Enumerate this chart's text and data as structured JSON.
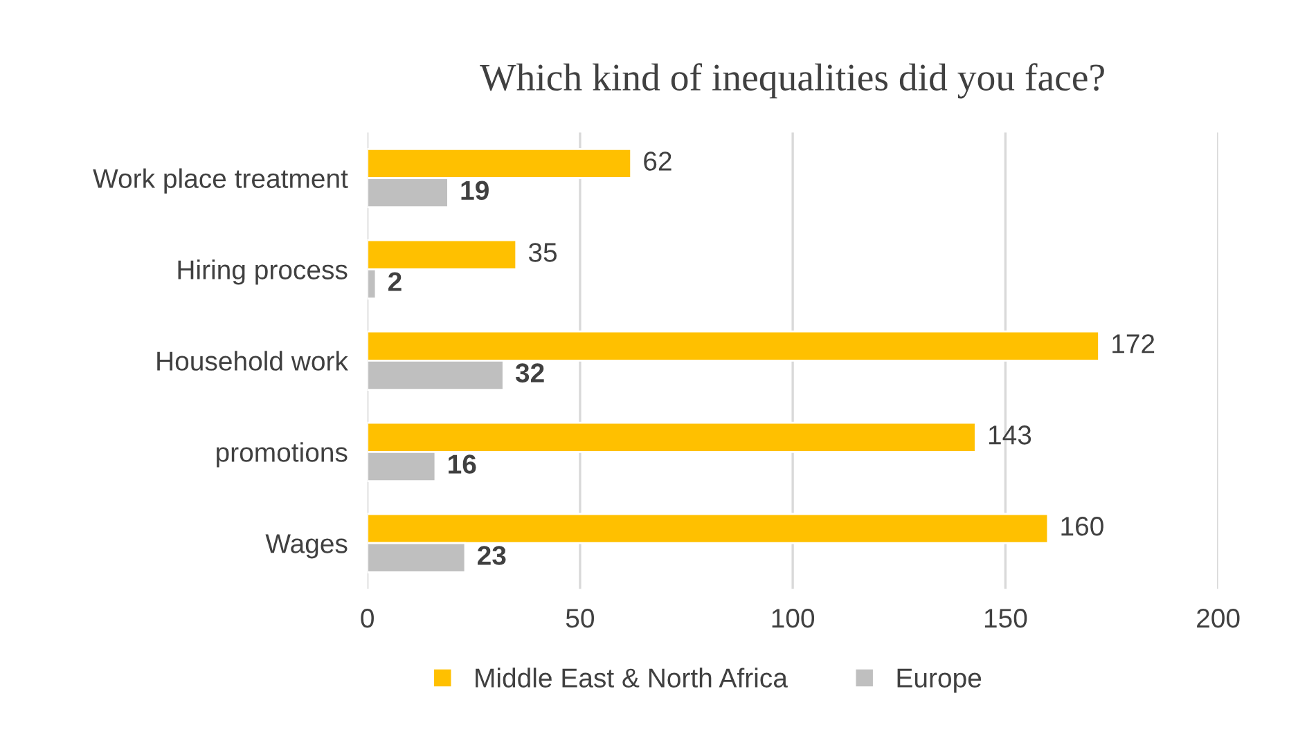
{
  "chart_data": {
    "type": "bar",
    "title": "Which kind of inequalities did you face?",
    "orientation": "horizontal",
    "categories": [
      "Work place treatment",
      "Hiring process",
      "Household work",
      "promotions",
      "Wages"
    ],
    "series": [
      {
        "name": "Middle East & North Africa",
        "color": "#ffc000",
        "values": [
          62,
          35,
          172,
          143,
          160
        ]
      },
      {
        "name": "Europe",
        "color": "#bfbfbf",
        "values": [
          19,
          2,
          32,
          16,
          23
        ]
      }
    ],
    "xlim": [
      0,
      200
    ],
    "xticks": [
      0,
      50,
      100,
      150,
      200
    ],
    "grid": "x",
    "legend": "bottom",
    "data_labels": true
  }
}
